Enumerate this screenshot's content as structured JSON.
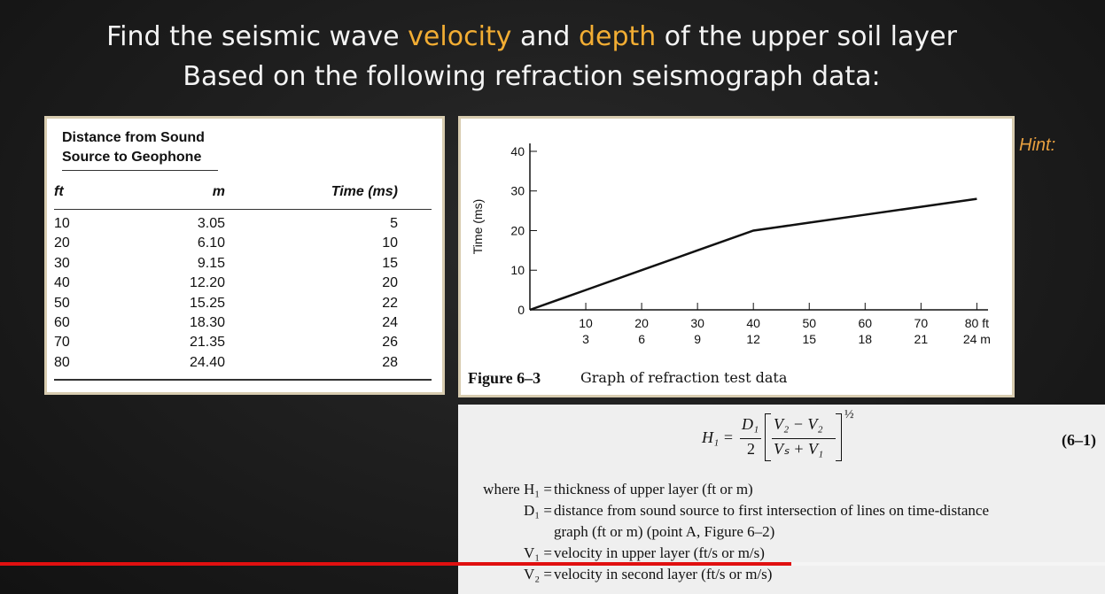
{
  "title": {
    "line1": [
      {
        "text": "Find the seismic wave ",
        "highlight": false
      },
      {
        "text": "velocity",
        "highlight": true
      },
      {
        "text": " and ",
        "highlight": false
      },
      {
        "text": "depth",
        "highlight": true
      },
      {
        "text": " of the upper soil layer",
        "highlight": false
      }
    ],
    "line2": "Based on the following refraction seismograph data:",
    "highlight_color": "#f2ad33"
  },
  "table": {
    "group_header": [
      "Distance from Sound",
      "Source to Geophone"
    ],
    "columns": [
      "ft",
      "m",
      "Time (ms)"
    ],
    "rows": [
      [
        "10",
        "3.05",
        "5"
      ],
      [
        "20",
        "6.10",
        "10"
      ],
      [
        "30",
        "9.15",
        "15"
      ],
      [
        "40",
        "12.20",
        "20"
      ],
      [
        "50",
        "15.25",
        "22"
      ],
      [
        "60",
        "18.30",
        "24"
      ],
      [
        "70",
        "21.35",
        "26"
      ],
      [
        "80",
        "24.40",
        "28"
      ]
    ]
  },
  "chart_data": {
    "type": "line",
    "ylabel": "Time (ms)",
    "x": [
      0,
      10,
      20,
      30,
      40,
      50,
      60,
      70,
      80
    ],
    "series": [
      {
        "color": "#111111",
        "values": [
          0,
          5,
          10,
          15,
          20,
          22,
          24,
          26,
          28
        ]
      }
    ],
    "xlim": [
      0,
      82
    ],
    "ylim": [
      0,
      42
    ],
    "xticks": [
      10,
      20,
      30,
      40,
      50,
      60,
      70,
      {
        "value": 80,
        "label": "80 ft"
      }
    ],
    "xticks_m": [
      "3",
      "6",
      "9",
      "12",
      "15",
      "18",
      "21",
      "24 m"
    ],
    "yticks": [
      0,
      10,
      20,
      30,
      40
    ],
    "grid": false,
    "caption": {
      "label": "Figure 6–3",
      "text": "Graph of refraction test data"
    }
  },
  "hint": "Hint:",
  "formula": {
    "lhs": "H₁ =",
    "numerator": "D₁",
    "denominator": "2",
    "inner_numerator": "V₂ − V₂",
    "inner_denominator": "Vₛ + V₁",
    "exponent": "½",
    "number": "(6–1)",
    "definitions": [
      {
        "symbol": "where H₁ =",
        "text": [
          "thickness of upper layer (ft or m)"
        ]
      },
      {
        "symbol": "D₁ =",
        "text": [
          "distance from sound source to first intersection of lines on time-distance",
          "graph (ft or m) (point A, Figure 6–2)"
        ]
      },
      {
        "symbol": "V₁ =",
        "text": [
          "velocity in upper layer (ft/s or m/s)"
        ]
      },
      {
        "symbol": "V₂ =",
        "text": [
          "velocity in second layer (ft/s or m/s)"
        ]
      }
    ]
  }
}
